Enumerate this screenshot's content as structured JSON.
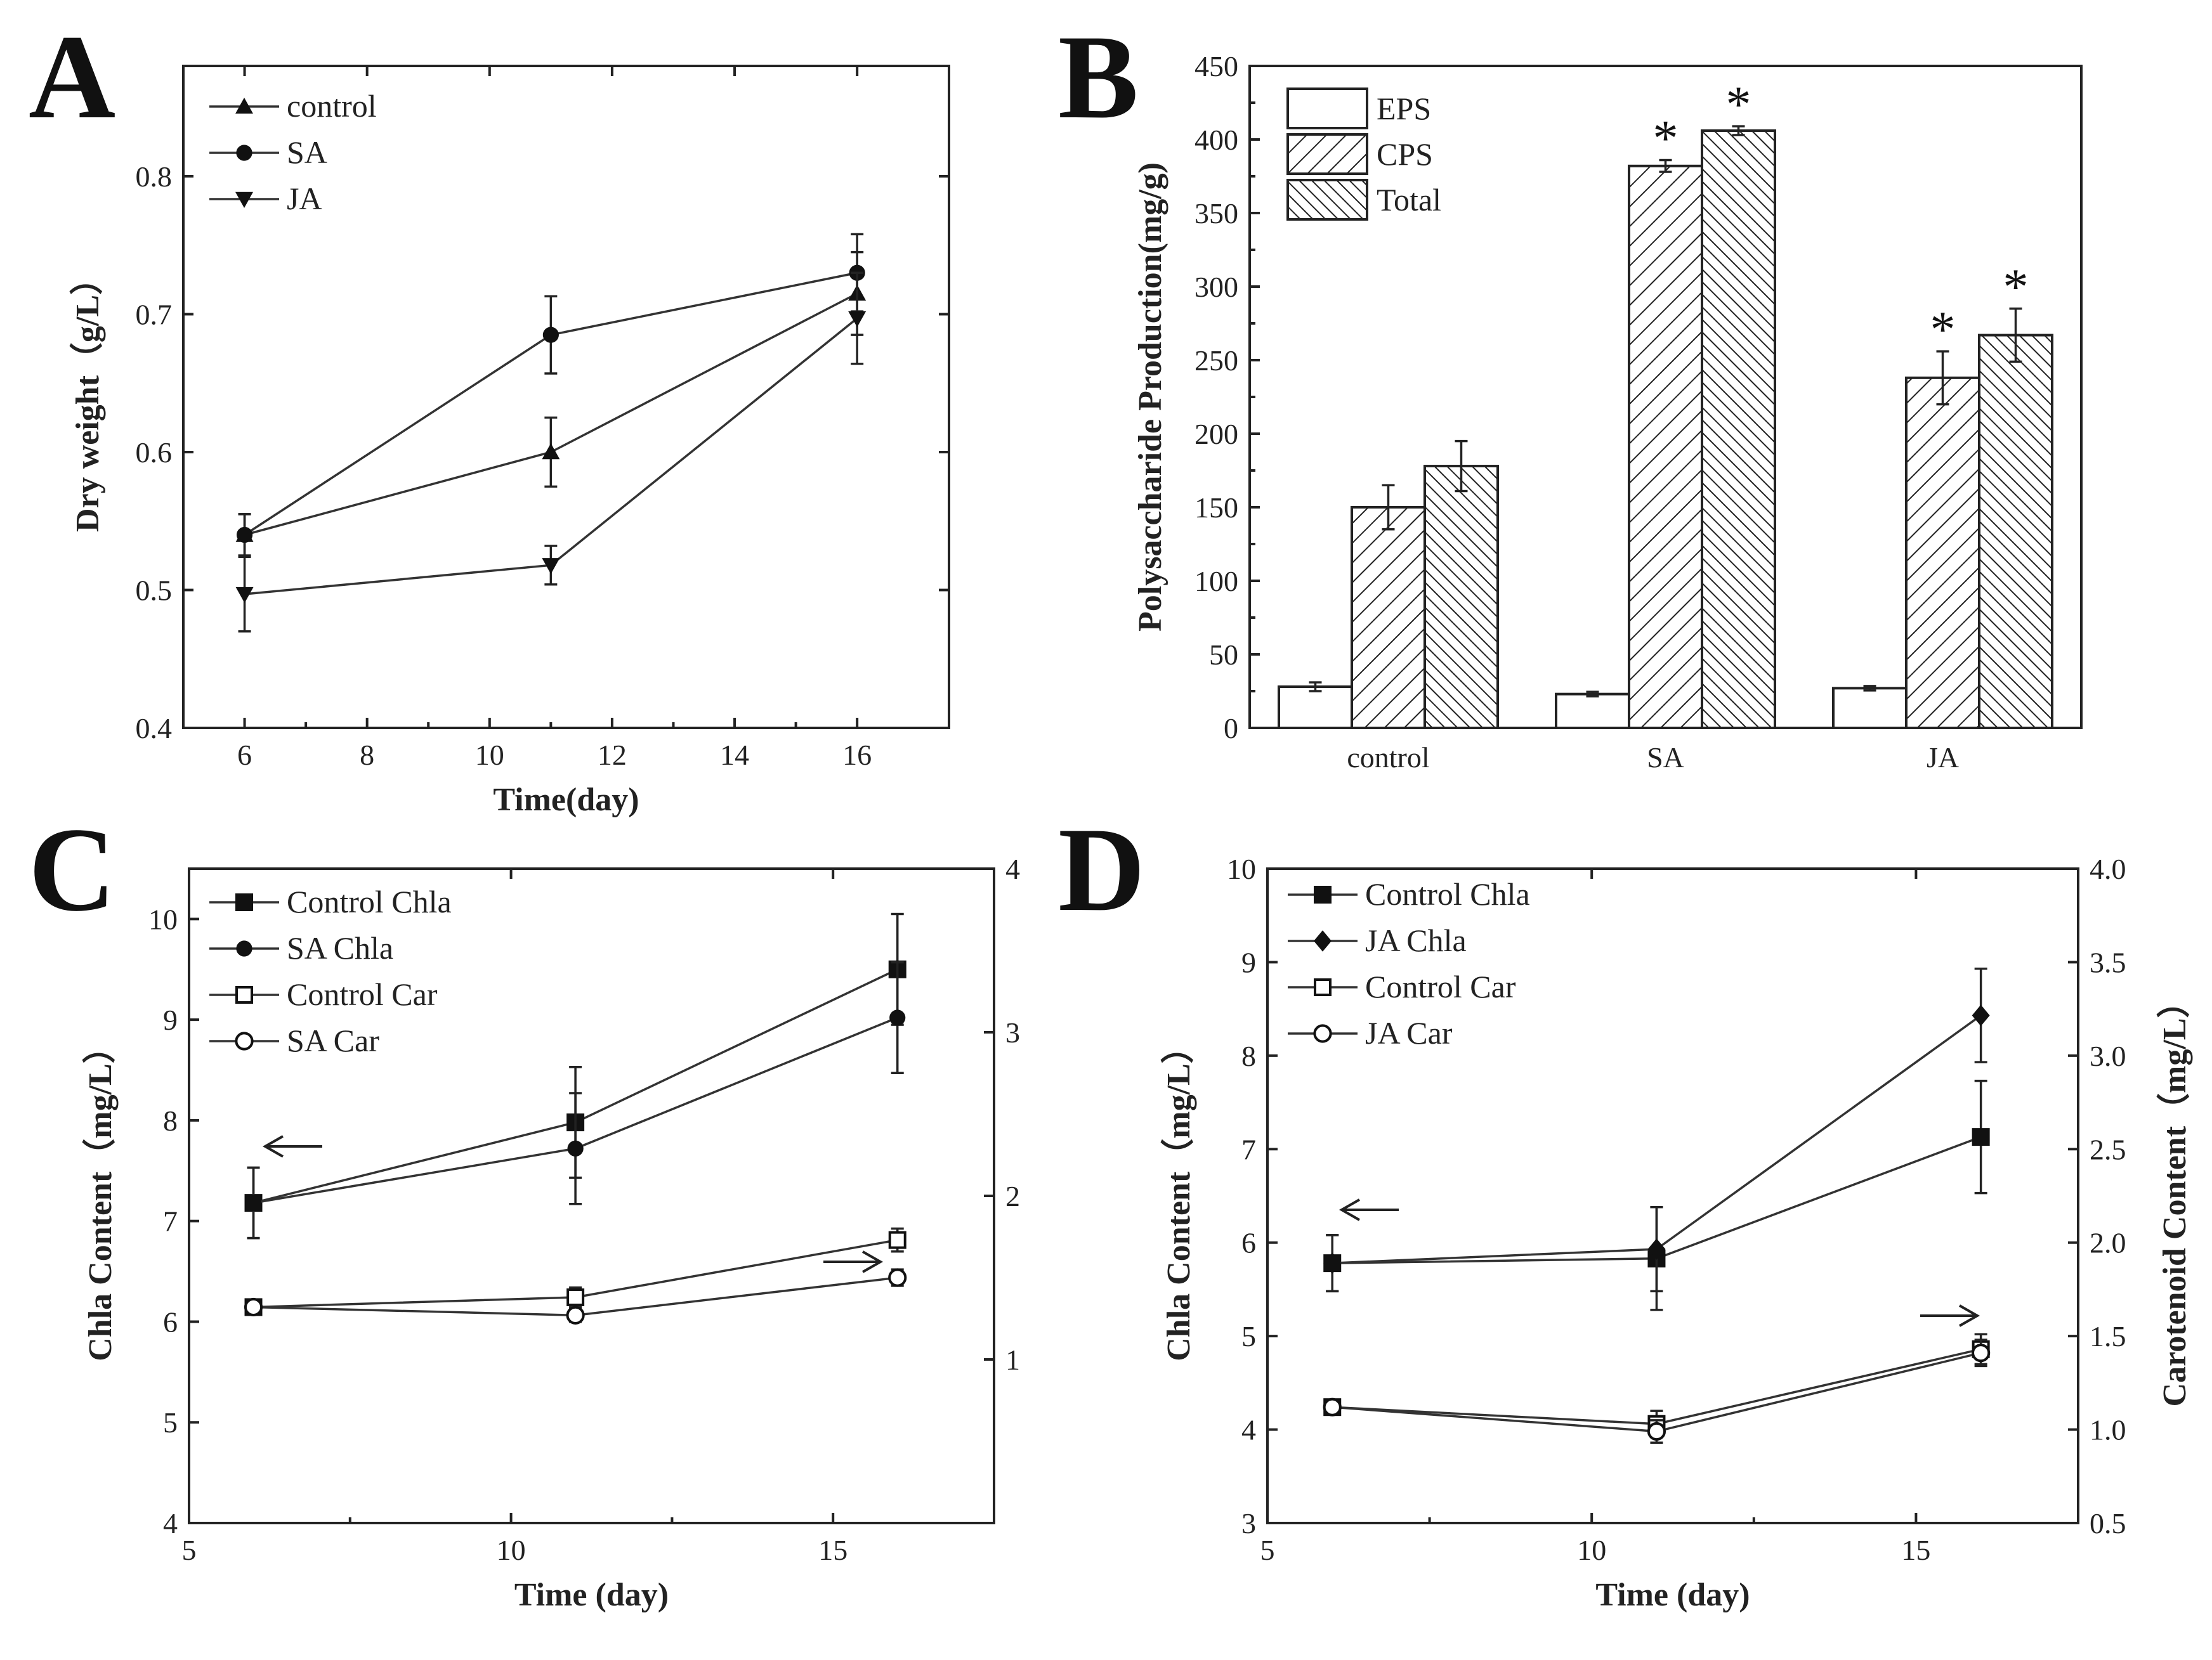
{
  "chart_data": [
    {
      "panel": "A",
      "type": "line",
      "xlabel": "Time(day)",
      "ylabel": "Dry weight（g/L）",
      "xlim": [
        5,
        17.5
      ],
      "ylim": [
        0.4,
        0.88
      ],
      "xticks": [
        6,
        8,
        10,
        12,
        14,
        16
      ],
      "yticks": [
        0.4,
        0.5,
        0.6,
        0.7,
        0.8
      ],
      "yticklabels": [
        "0.4",
        "0.5",
        "0.6",
        "0.7",
        "0.8"
      ],
      "x": [
        6,
        11,
        16
      ],
      "series": [
        {
          "name": "control",
          "marker": "triangle-up",
          "values": [
            0.54,
            0.6,
            0.715
          ],
          "errors": [
            0.015,
            0.025,
            0.03
          ]
        },
        {
          "name": "SA",
          "marker": "circle-filled",
          "values": [
            0.54,
            0.685,
            0.73
          ],
          "errors": [
            0.015,
            0.028,
            0.028
          ]
        },
        {
          "name": "JA",
          "marker": "triangle-down",
          "values": [
            0.497,
            0.518,
            0.697
          ],
          "errors": [
            0.027,
            0.014,
            0.033
          ]
        }
      ]
    },
    {
      "panel": "B",
      "type": "bar",
      "xlabel": "",
      "ylabel": "Polysaccharide Production(mg/g)",
      "ylim": [
        0,
        450
      ],
      "yticks": [
        0,
        50,
        100,
        150,
        200,
        250,
        300,
        350,
        400,
        450
      ],
      "categories": [
        "control",
        "SA",
        "JA"
      ],
      "series": [
        {
          "name": "EPS",
          "pattern": "empty",
          "values": [
            28,
            23,
            27
          ],
          "errors": [
            3,
            1.5,
            1.5
          ]
        },
        {
          "name": "CPS",
          "pattern": "hatch-right",
          "values": [
            150,
            382,
            238
          ],
          "errors": [
            15,
            4,
            18
          ]
        },
        {
          "name": "Total",
          "pattern": "hatch-left",
          "values": [
            178,
            406,
            267
          ],
          "errors": [
            17,
            3,
            18
          ]
        }
      ],
      "significance_mark": "*",
      "significant": [
        [
          false,
          false,
          false
        ],
        [
          false,
          true,
          true
        ],
        [
          false,
          true,
          true
        ]
      ]
    },
    {
      "panel": "C",
      "type": "line",
      "xlabel": "Time (day)",
      "ylabel": "Chla Content（mg/L）",
      "y2label": "",
      "xlim": [
        5,
        17.5
      ],
      "ylim": [
        4,
        10.5
      ],
      "y2lim": [
        0,
        4
      ],
      "xticks": [
        5,
        10,
        15
      ],
      "yticks": [
        4,
        5,
        6,
        7,
        8,
        9,
        10
      ],
      "y2ticks": [
        1,
        2,
        3,
        4
      ],
      "x": [
        6,
        11,
        16
      ],
      "series": [
        {
          "name": "Control Chla",
          "axis": "left",
          "marker": "square-filled",
          "values": [
            7.18,
            7.98,
            9.5
          ],
          "errors": [
            0.35,
            0.55,
            0.55
          ]
        },
        {
          "name": "SA Chla",
          "axis": "left",
          "marker": "circle-filled",
          "values": [
            7.18,
            7.72,
            9.02
          ],
          "errors": [
            0.35,
            0.55,
            0.55
          ]
        },
        {
          "name": "Control Car",
          "axis": "right",
          "marker": "square-open",
          "values": [
            1.32,
            1.38,
            1.73
          ],
          "errors": [
            0.0,
            0.06,
            0.07
          ]
        },
        {
          "name": "SA Car",
          "axis": "right",
          "marker": "circle-open",
          "values": [
            1.32,
            1.27,
            1.5
          ],
          "errors": [
            0.0,
            0.04,
            0.05
          ]
        }
      ],
      "annotations": [
        "←",
        "→"
      ]
    },
    {
      "panel": "D",
      "type": "line",
      "xlabel": "Time (day)",
      "ylabel": "Chla Content（mg/L）",
      "y2label": "Carotenoid Content（mg/L）",
      "xlim": [
        5,
        17.5
      ],
      "ylim": [
        3,
        10
      ],
      "y2lim": [
        0.5,
        4.0
      ],
      "xticks": [
        5,
        10,
        15
      ],
      "yticks": [
        3,
        4,
        5,
        6,
        7,
        8,
        9,
        10
      ],
      "y2ticks": [
        0.5,
        1.0,
        1.5,
        2.0,
        2.5,
        3.0,
        3.5,
        4.0
      ],
      "y2ticklabels": [
        "0.5",
        "1.0",
        "1.5",
        "2.0",
        "2.5",
        "3.0",
        "3.5",
        "4.0"
      ],
      "x": [
        6,
        11,
        16
      ],
      "series": [
        {
          "name": "Control Chla",
          "axis": "left",
          "marker": "square-filled",
          "values": [
            5.78,
            5.83,
            7.13
          ],
          "errors": [
            0.3,
            0.55,
            0.6
          ]
        },
        {
          "name": "JA Chla",
          "axis": "left",
          "marker": "diamond-filled",
          "values": [
            5.78,
            5.93,
            8.43
          ],
          "errors": [
            0.3,
            0.45,
            0.5
          ]
        },
        {
          "name": "Control Car",
          "axis": "right",
          "marker": "square-open",
          "values": [
            1.12,
            1.03,
            1.43
          ],
          "errors": [
            0.0,
            0.07,
            0.08
          ]
        },
        {
          "name": "JA Car",
          "axis": "right",
          "marker": "circle-open",
          "values": [
            1.12,
            0.99,
            1.41
          ],
          "errors": [
            0.0,
            0.06,
            0.07
          ]
        }
      ],
      "annotations": [
        "←",
        "→"
      ]
    }
  ]
}
